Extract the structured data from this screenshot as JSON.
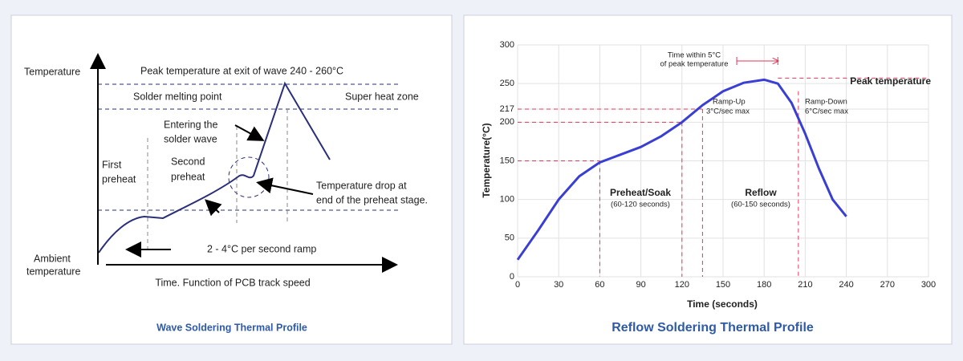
{
  "chart_data": [
    {
      "type": "schematic",
      "title": "Wave Soldering Thermal Profile",
      "y_label": "Temperature",
      "y_origin_label": [
        "Ambient",
        "temperature"
      ],
      "x_label": "Time. Function of PCB track speed",
      "labels": [
        "Peak temperature at exit of wave 240 - 260°C",
        "Solder melting point",
        "Super heat zone",
        "Entering the",
        "solder wave",
        "First",
        "preheat",
        "Second",
        "preheat",
        "Temperature drop at",
        "end of the preheat stage.",
        "2 - 4°C per second ramp"
      ],
      "color": "#2a2f7a"
    },
    {
      "type": "line",
      "title": "Reflow Soldering Thermal Profile",
      "x_label": "Time (seconds)",
      "y_label": "Temperature(°C)",
      "x": [
        0,
        15,
        30,
        45,
        60,
        75,
        90,
        105,
        120,
        135,
        150,
        165,
        180,
        190,
        200,
        210,
        220,
        230,
        240
      ],
      "values": [
        22,
        60,
        100,
        130,
        148,
        158,
        168,
        182,
        200,
        222,
        240,
        251,
        255,
        250,
        225,
        185,
        140,
        100,
        78
      ],
      "color": "#3a3fd4",
      "xlim": [
        0,
        300
      ],
      "xticks": [
        0,
        30,
        60,
        90,
        120,
        150,
        180,
        210,
        240,
        270,
        300
      ],
      "ylim": [
        0,
        300
      ],
      "yticks": [
        0,
        50,
        100,
        150,
        200,
        217,
        250,
        300
      ],
      "grid": true,
      "ref_color": "#e0375a",
      "hlines": [
        {
          "y": 150,
          "x_end": 60
        },
        {
          "y": 200,
          "x_end": 120
        },
        {
          "y": 217,
          "x_end": 135
        },
        {
          "y": 257,
          "x_start": 190,
          "x_end": 300
        }
      ],
      "vlines": [
        {
          "x": 60,
          "y_top": 150
        },
        {
          "x": 120,
          "y_top": 200
        },
        {
          "x": 135,
          "y_top": 217
        },
        {
          "x": 205,
          "y_top": 240
        }
      ],
      "time_window": [
        160,
        190
      ],
      "annotations": [
        "Time within 5°C",
        "of peak temperature",
        "Peak temperature",
        "Ramp-Up",
        "3°C/sec max",
        "Ramp-Down",
        "6°C/sec max",
        "Preheat/Soak",
        "(60-120 seconds)",
        "Reflow",
        "(60-150 seconds)"
      ]
    }
  ]
}
